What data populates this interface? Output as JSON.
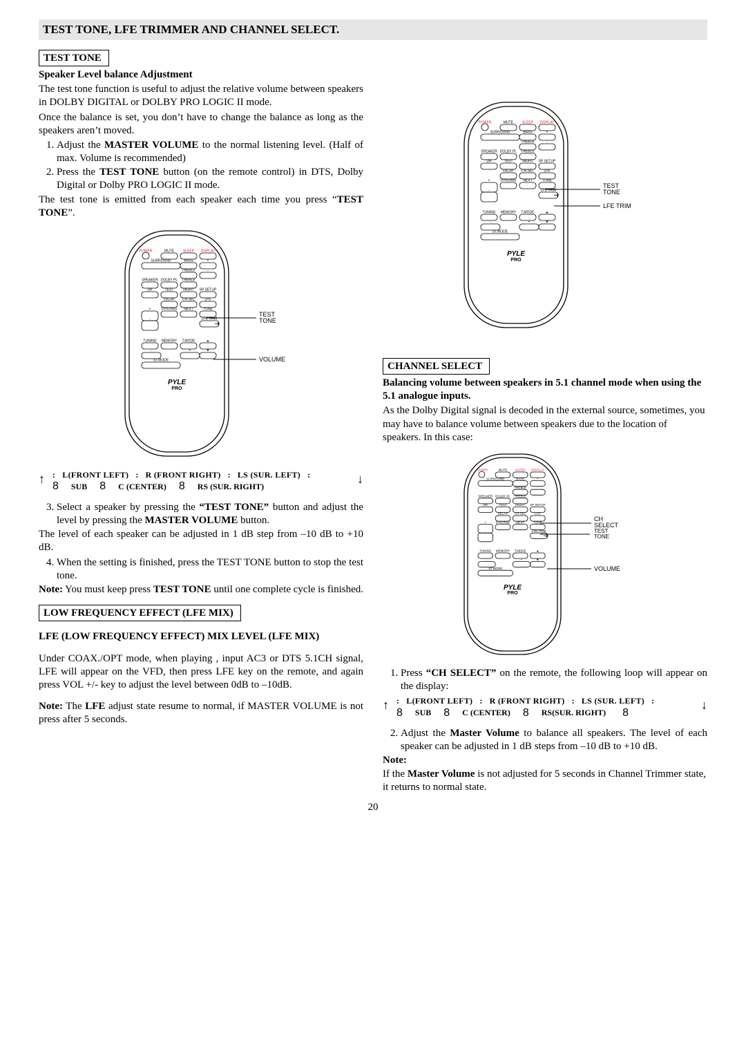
{
  "header": "TEST TONE, LFE TRIMMER AND CHANNEL SELECT.",
  "testTone": {
    "title": "TEST TONE",
    "subtitle": "Speaker Level balance Adjustment",
    "p1": "The test tone function is useful to adjust the relative volume between speakers in DOLBY DIGITAL or DOLBY PRO LOGIC II mode.",
    "p2": "Once the balance is set, you don’t have to change the balance as long as the speakers aren’t moved.",
    "li1a": "Adjust the ",
    "li1b": "MASTER VOLUME",
    "li1c": " to the normal listening level. (Half of max. Volume is recommended)",
    "li2a": "Press the ",
    "li2b": "TEST TONE",
    "li2c": " button (on the remote control) in DTS, Dolby Digital or Dolby PRO LOGIC II mode.",
    "p3a": "The test tone is emitted from each speaker each time you press “",
    "p3b": "TEST TONE",
    "p3c": "”.",
    "cycleA": "L(FRONT LEFT)",
    "cycleB": "R (FRONT RIGHT)",
    "cycleC": "LS (SUR. LEFT)",
    "cycleD": "SUB",
    "cycleE": "C (CENTER)",
    "cycleF": "RS (SUR. RIGHT)",
    "li3a": "Select a speaker by pressing the ",
    "li3b": "“TEST TONE”",
    "li3c": " button and adjust the level by pressing the ",
    "li3d": "MASTER VOLUME",
    "li3e": " button.",
    "p4": "The level of each speaker can be adjusted in 1 dB step from –10 dB to +10 dB.",
    "li4": "When the setting is finished, press the TEST TONE button to stop the test tone.",
    "noteLabel": "Note:",
    "noteA": " You must keep press ",
    "noteB": "TEST TONE",
    "noteC": " until one complete cycle is finished."
  },
  "lfe": {
    "title": "LOW FREQUENCY EFFECT (LFE MIX)",
    "h": "LFE (LOW FREQUENCY EFFECT) MIX LEVEL (LFE MIX)",
    "p1": "Under COAX./OPT mode, when playing , input AC3 or DTS 5.1CH signal, LFE will appear on the VFD, then press LFE key on the remote, and again press VOL +/- key to adjust the level between 0dB to –10dB.",
    "noteLabel": "Note:",
    "noteA": " The ",
    "noteB": "LFE",
    "noteC": " adjust state resume to normal, if MASTER VOLUME is not press after 5 seconds."
  },
  "ch": {
    "title": "CHANNEL SELECT",
    "sub": "Balancing volume between speakers in 5.1 channel mode when using the 5.1 analogue inputs.",
    "p1": "As the Dolby Digital signal is decoded in the external source, sometimes, you may have to balance volume between speakers due to the location of speakers. In this case:",
    "li1a": "Press ",
    "li1b": "“CH SELECT”",
    "li1c": " on the remote, the following loop will appear on the display:",
    "cycleF2": "RS(SUR. RIGHT)",
    "li2a": "Adjust the ",
    "li2b": "Master Volume",
    "li2c": " to balance all speakers. The level of each speaker can be adjusted in 1 dB steps from –10 dB to +10 dB.",
    "noteLabel": "Note:",
    "noteA": "If the ",
    "noteB": "Master Volume",
    "noteC": " is not adjusted for 5 seconds in Channel Trimmer state, it returns to normal state."
  },
  "remote": {
    "brand": "PYLE",
    "sub": "PRO",
    "labels": {
      "testTone": "TEST\nTONE",
      "volume": "VOLUME",
      "lfeTrim": "LFE TRIM",
      "chSelect": "CH\nSELECT"
    },
    "btns": {
      "power": "POWER",
      "mute": "MUTE",
      "sleep": "SLEEP",
      "disp": "DISPLAY",
      "surr": "SURROUND",
      "bass": "BASS",
      "treble": "TREBLE",
      "dolby": "DOLBY PL",
      "sp": "SPEAKER",
      "dolbypl": "DOLBY PL",
      "dr": "DR",
      "test": "TEST",
      "night": "NIGHT",
      "spsetup": "SP SETUP",
      "delay": "DELAY",
      "chsel": "CH.SEL",
      "lfe": "LFE",
      "dynrng": "DYN.RNG",
      "pref": "NEXT",
      "tnext": "TONE",
      "auto": "AUTO",
      "lfetrim": "LFE TRIM",
      "tuning": "TUNING",
      "memory": "MEMORY",
      "tmode": "T.MODE",
      "up": "▲",
      "down": "▼",
      "stmode": "ST.MODE"
    }
  },
  "pageNum": "20"
}
